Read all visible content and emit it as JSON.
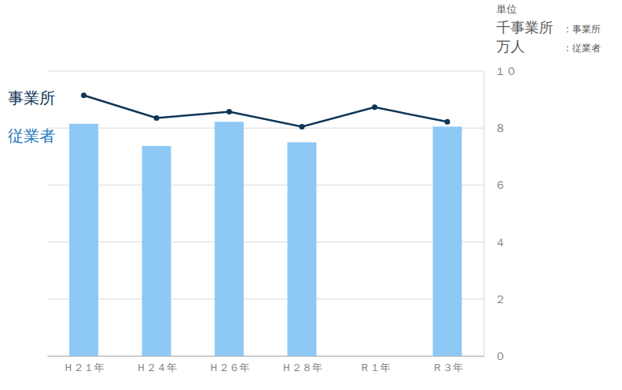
{
  "chart_data": {
    "type": "bar",
    "categories": [
      "Ｈ２１年",
      "Ｈ２４年",
      "Ｈ２６年",
      "Ｈ２８年",
      "Ｒ１年",
      "Ｒ３年"
    ],
    "series": [
      {
        "name": "従業者",
        "type": "bar",
        "color": "#8ec8f5",
        "values": [
          8.15,
          7.37,
          8.22,
          7.5,
          null,
          8.05
        ]
      },
      {
        "name": "事業所",
        "type": "line",
        "color": "#0e3558",
        "marker": "circle",
        "values": [
          9.15,
          8.35,
          8.57,
          8.05,
          8.73,
          8.22
        ]
      }
    ],
    "ylim": [
      0,
      10
    ],
    "yticks": [
      {
        "value": 0,
        "label": "０"
      },
      {
        "value": 2,
        "label": "２"
      },
      {
        "value": 4,
        "label": "４"
      },
      {
        "value": 6,
        "label": "６"
      },
      {
        "value": 8,
        "label": "８"
      },
      {
        "value": 10,
        "label": "１０"
      }
    ],
    "grid": true,
    "unit_title": "単位",
    "units": [
      {
        "unit": "千事業所",
        "text": ": 事業所"
      },
      {
        "unit": "万人",
        "text": ": 従業者"
      }
    ]
  }
}
